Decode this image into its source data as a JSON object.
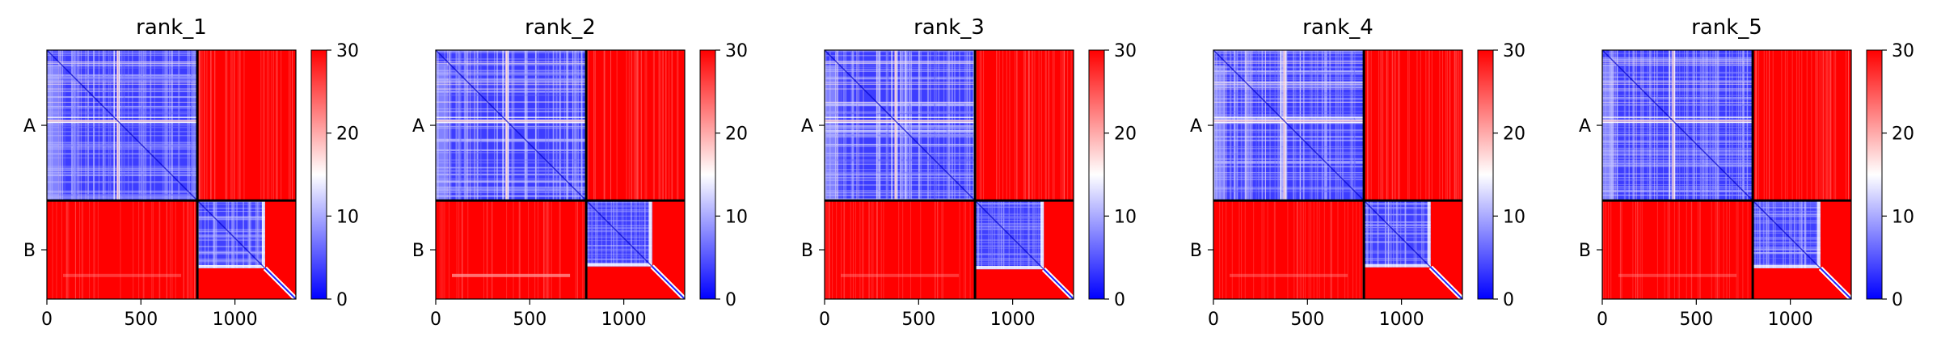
{
  "chart_data": {
    "type": "heatmap",
    "description": "Predicted aligned error (PAE) matrices for five ranked models of a two-chain complex (chains A and B).",
    "x_ticks": [
      0,
      500,
      1000
    ],
    "xlim": [
      0,
      1324
    ],
    "chain_labels": [
      "A",
      "B"
    ],
    "chain_boundary": 800,
    "colorbar": {
      "min": 0,
      "max": 30,
      "ticks": [
        0,
        10,
        20,
        30
      ],
      "colors": {
        "low": "#0000ff",
        "mid": "#ffffff",
        "high": "#ff0000"
      }
    },
    "panels": [
      {
        "title": "rank_1",
        "block_B_B_end": 1160,
        "b_row_band_intensity": "faint"
      },
      {
        "title": "rank_2",
        "block_B_B_end": 1150,
        "b_row_band_intensity": "medium"
      },
      {
        "title": "rank_3",
        "block_B_B_end": 1165,
        "b_row_band_intensity": "faint"
      },
      {
        "title": "rank_4",
        "block_B_B_end": 1155,
        "b_row_band_intensity": "faint"
      },
      {
        "title": "rank_5",
        "block_B_B_end": 1160,
        "b_row_band_intensity": "faint"
      }
    ]
  }
}
